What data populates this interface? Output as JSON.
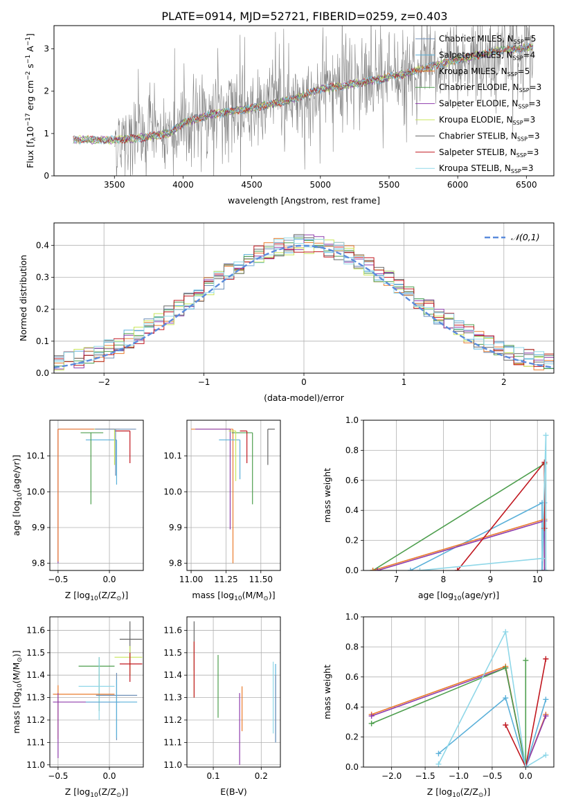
{
  "figure_title": "PLATE=0914, MJD=52721, FIBERID=0259, z=0.403",
  "model_colors": [
    "#6d8fb7",
    "#5ab0d9",
    "#ea7b2c",
    "#4d9e4d",
    "#8e3bab",
    "#c8e65a",
    "#666666",
    "#c0161e",
    "#8fd7e8"
  ],
  "chart_data": [
    {
      "id": "spectrum",
      "type": "line",
      "title": "PLATE=0914, MJD=52721, FIBERID=0259, z=0.403",
      "xlabel": "wavelength [Angstrom, rest frame]",
      "ylabel_parts": [
        "Flux [f",
        "λ",
        "10",
        "−17",
        " erg cm",
        "−2",
        " s",
        "−1",
        " A",
        "−1",
        "]"
      ],
      "xlim": [
        3060,
        6700
      ],
      "ylim": [
        0,
        3.55
      ],
      "xticks": [
        3500,
        4000,
        4500,
        5000,
        5500,
        6000,
        6500
      ],
      "yticks": [
        0,
        1,
        2,
        3
      ],
      "grid": false,
      "legend_loc": "upper-right",
      "legend": [
        {
          "label": "Chabrier MILES, N",
          "sub": "SSP",
          "suffix": "=5"
        },
        {
          "label": "Salpeter MILES, N",
          "sub": "SSP",
          "suffix": "=4"
        },
        {
          "label": "Kroupa MILES, N",
          "sub": "SSP",
          "suffix": "=5"
        },
        {
          "label": "Chabrier ELODIE, N",
          "sub": "SSP",
          "suffix": "=3"
        },
        {
          "label": "Salpeter ELODIE, N",
          "sub": "SSP",
          "suffix": "=3"
        },
        {
          "label": "Kroupa ELODIE, N",
          "sub": "SSP",
          "suffix": "=3"
        },
        {
          "label": "Chabrier STELIB, N",
          "sub": "SSP",
          "suffix": "=3"
        },
        {
          "label": "Salpeter STELIB, N",
          "sub": "SSP",
          "suffix": "=3"
        },
        {
          "label": "Kroupa STELIB, N",
          "sub": "SSP",
          "suffix": "=3"
        }
      ],
      "model_continuum": {
        "x": [
          3200,
          3500,
          3700,
          3800,
          3900,
          4000,
          4200,
          4500,
          4800,
          5000,
          5300,
          5600,
          6000,
          6300,
          6550
        ],
        "y": [
          0.85,
          0.85,
          0.9,
          0.95,
          1.0,
          1.25,
          1.45,
          1.6,
          1.8,
          2.05,
          2.2,
          2.4,
          2.75,
          2.95,
          3.05
        ]
      },
      "data_range": [
        3500,
        6550
      ]
    },
    {
      "id": "residuals",
      "type": "histogram",
      "xlabel": "(data-model)/error",
      "ylabel": "Normed distribution",
      "xlim": [
        -2.5,
        2.5
      ],
      "ylim": [
        0,
        0.47
      ],
      "xticks": [
        -2,
        -1,
        0,
        1,
        2
      ],
      "yticks": [
        0.0,
        0.1,
        0.2,
        0.3,
        0.4
      ],
      "grid": true,
      "bin_width": 0.1,
      "legend_loc": "upper-right",
      "normal_curve_label": "𝒩(0,1)",
      "normal_curve_color": "#5b8bdc"
    },
    {
      "id": "age-vs-Z",
      "type": "errorbar",
      "xlabel_parts": [
        "Z [log",
        "10",
        "(Z/Z",
        "⊙",
        ")]"
      ],
      "ylabel_parts": [
        "age  [log",
        "10",
        "(age/yr)]"
      ],
      "xlim": [
        -0.58,
        0.33
      ],
      "ylim": [
        9.78,
        10.2
      ],
      "xticks": [
        -0.5,
        0.0
      ],
      "yticks": [
        9.8,
        9.9,
        10.0,
        10.1
      ],
      "grid": true,
      "points": [
        {
          "x": -0.5,
          "xerr": [
            0.0,
            0.55
          ],
          "y": 10.175,
          "yerr": [
            0.375,
            0.0
          ],
          "model": 5
        },
        {
          "x": 0.07,
          "xerr": [
            0.3,
            0.0
          ],
          "y": 10.145,
          "yerr": [
            0.125,
            0.0
          ],
          "model": 2
        },
        {
          "x": -0.18,
          "xerr": [
            0.1,
            0.12
          ],
          "y": 10.165,
          "yerr": [
            0.2,
            0.0
          ],
          "model": 4
        },
        {
          "x": 0.2,
          "xerr": [
            0.15,
            0.0
          ],
          "y": 10.17,
          "yerr": [
            0.09,
            0.0
          ],
          "model": 8
        },
        {
          "x": -0.5,
          "xerr": [
            0.0,
            0.6
          ],
          "y": 10.175,
          "yerr": [
            0.37,
            0.0
          ],
          "model": 3
        },
        {
          "x": 0.05,
          "xerr": [
            0.2,
            0.0
          ],
          "y": 10.175,
          "yerr": [
            0.1,
            0.0
          ],
          "model": 6
        },
        {
          "x": 0.06,
          "xerr": [
            0.2,
            0.2
          ],
          "y": 10.175,
          "yerr": [
            0.13,
            0.0
          ],
          "model": 1
        }
      ]
    },
    {
      "id": "age-vs-mass",
      "type": "errorbar",
      "xlabel_parts": [
        "mass [log",
        "10",
        "(M/M",
        "⊙",
        ")]"
      ],
      "xlim": [
        10.97,
        11.64
      ],
      "ylim": [
        9.78,
        10.2
      ],
      "xticks": [
        11.0,
        11.25,
        11.5
      ],
      "xtick_labels": [
        "11.00",
        "11.25",
        "11.50"
      ],
      "yticks": [
        9.8,
        9.9,
        10.0,
        10.1
      ],
      "grid": true,
      "points": [
        {
          "x": 11.3,
          "xerr": [
            0.3,
            0.0
          ],
          "y": 10.175,
          "yerr": [
            0.375,
            0.0
          ],
          "model": 3
        },
        {
          "x": 11.28,
          "xerr": [
            0.25,
            0.0
          ],
          "y": 10.175,
          "yerr": [
            0.28,
            0.0
          ],
          "model": 5
        },
        {
          "x": 11.44,
          "xerr": [
            0.15,
            0.0
          ],
          "y": 10.165,
          "yerr": [
            0.2,
            0.0
          ],
          "model": 4
        },
        {
          "x": 11.55,
          "xerr": [
            0.0,
            0.05
          ],
          "y": 10.175,
          "yerr": [
            0.1,
            0.0
          ],
          "model": 7
        },
        {
          "x": 11.35,
          "xerr": [
            0.15,
            0.0
          ],
          "y": 10.145,
          "yerr": [
            0.11,
            0.0
          ],
          "model": 2
        },
        {
          "x": 11.4,
          "xerr": [
            0.05,
            0.0
          ],
          "y": 10.17,
          "yerr": [
            0.09,
            0.0
          ],
          "model": 8
        },
        {
          "x": 11.32,
          "xerr": [
            0.05,
            0.0
          ],
          "y": 10.17,
          "yerr": [
            0.14,
            0.0
          ],
          "model": 6
        }
      ]
    },
    {
      "id": "weight-vs-age",
      "type": "line",
      "xlabel_parts": [
        "age  [log",
        "10",
        "(age/yr)]"
      ],
      "ylabel": "mass weight",
      "xlim": [
        6.3,
        10.35
      ],
      "ylim": [
        0,
        1.0
      ],
      "xticks": [
        7,
        8,
        9,
        10
      ],
      "yticks": [
        0.0,
        0.2,
        0.4,
        0.6,
        0.8,
        1.0
      ],
      "grid": true,
      "series": [
        {
          "model": 4,
          "x": [
            6.5,
            10.15,
            10.15
          ],
          "y": [
            0.0,
            0.71,
            0.0
          ]
        },
        {
          "model": 2,
          "x": [
            7.3,
            10.1,
            10.1,
            10.15
          ],
          "y": [
            0.0,
            0.45,
            0.0,
            0.45
          ]
        },
        {
          "model": 3,
          "x": [
            6.5,
            10.15,
            10.15
          ],
          "y": [
            0.0,
            0.34,
            0.0
          ]
        },
        {
          "model": 5,
          "x": [
            6.6,
            10.15,
            10.15
          ],
          "y": [
            0.0,
            0.33,
            0.0
          ]
        },
        {
          "model": 8,
          "x": [
            8.3,
            10.15,
            10.15
          ],
          "y": [
            0.0,
            0.72,
            0.28
          ]
        },
        {
          "model": 9,
          "x": [
            7.5,
            10.1,
            10.18,
            10.18
          ],
          "y": [
            0.0,
            0.08,
            0.9,
            0.0
          ]
        }
      ]
    },
    {
      "id": "mass-vs-Z",
      "type": "errorbar",
      "xlabel_parts": [
        "Z [log",
        "10",
        "(Z/Z",
        "⊙",
        ")]"
      ],
      "ylabel_parts": [
        "mass [log",
        "10",
        "(M/M",
        "⊙",
        ")]"
      ],
      "xlim": [
        -0.58,
        0.33
      ],
      "ylim": [
        10.99,
        11.66
      ],
      "xticks": [
        -0.5,
        0.0
      ],
      "yticks": [
        11.0,
        11.1,
        11.2,
        11.3,
        11.4,
        11.5,
        11.6
      ],
      "grid": true,
      "points": [
        {
          "x": 0.2,
          "xerr": [
            0.1,
            0.12
          ],
          "y": 11.56,
          "yerr": [
            0.1,
            0.08
          ],
          "model": 7
        },
        {
          "x": 0.2,
          "xerr": [
            0.15,
            0.12
          ],
          "y": 11.48,
          "yerr": [
            0.08,
            0.05
          ],
          "model": 6
        },
        {
          "x": 0.2,
          "xerr": [
            0.1,
            0.12
          ],
          "y": 11.45,
          "yerr": [
            0.08,
            0.05
          ],
          "model": 8
        },
        {
          "x": -0.1,
          "xerr": [
            0.2,
            0.15
          ],
          "y": 11.44,
          "yerr": [
            0.2,
            0.04
          ],
          "model": 4
        },
        {
          "x": -0.1,
          "xerr": [
            0.2,
            0.15
          ],
          "y": 11.35,
          "yerr": [
            0.15,
            0.13
          ],
          "model": 9
        },
        {
          "x": -0.5,
          "xerr": [
            0.05,
            0.55
          ],
          "y": 11.315,
          "yerr": [
            0.2,
            0.04
          ],
          "model": 3
        },
        {
          "x": 0.07,
          "xerr": [
            0.2,
            0.2
          ],
          "y": 11.31,
          "yerr": [
            0.2,
            0.1
          ],
          "model": 1
        },
        {
          "x": -0.5,
          "xerr": [
            0.05,
            0.6
          ],
          "y": 11.28,
          "yerr": [
            0.25,
            0.04
          ],
          "model": 5
        },
        {
          "x": 0.07,
          "xerr": [
            0.3,
            0.2
          ],
          "y": 11.28,
          "yerr": [
            0.16,
            0.1
          ],
          "model": 2
        }
      ]
    },
    {
      "id": "mass-vs-EBV",
      "type": "errorbar",
      "xlabel": "E(B-V)",
      "xlim": [
        0.045,
        0.24
      ],
      "ylim": [
        10.99,
        11.66
      ],
      "xticks": [
        0.1,
        0.2
      ],
      "yticks": [
        11.0,
        11.1,
        11.2,
        11.3,
        11.4,
        11.5,
        11.6
      ],
      "grid": true,
      "points": [
        {
          "x": 0.06,
          "y": 11.56,
          "yerr": [
            0.14,
            0.08
          ],
          "model": 7
        },
        {
          "x": 0.06,
          "y": 11.5,
          "yerr": [
            0.2,
            0.05
          ],
          "model": 6
        },
        {
          "x": 0.06,
          "y": 11.45,
          "yerr": [
            0.15,
            0.1
          ],
          "model": 8
        },
        {
          "x": 0.11,
          "y": 11.35,
          "yerr": [
            0.14,
            0.14
          ],
          "model": 4
        },
        {
          "x": 0.16,
          "y": 11.25,
          "yerr": [
            0.1,
            0.1
          ],
          "model": 3
        },
        {
          "x": 0.155,
          "y": 11.17,
          "yerr": [
            0.17,
            0.15
          ],
          "model": 5
        },
        {
          "x": 0.23,
          "y": 11.3,
          "yerr": [
            0.2,
            0.15
          ],
          "model": 2
        },
        {
          "x": 0.23,
          "y": 11.3,
          "yerr": [
            0.2,
            0.1
          ],
          "model": 1
        },
        {
          "x": 0.225,
          "y": 11.3,
          "yerr": [
            0.16,
            0.16
          ],
          "model": 9
        }
      ]
    },
    {
      "id": "weight-vs-Z",
      "type": "line",
      "xlabel_parts": [
        "Z [log",
        "10",
        "(Z/Z",
        "⊙",
        ")]"
      ],
      "ylabel": "mass weight",
      "xlim": [
        -2.42,
        0.42
      ],
      "ylim": [
        0,
        1.0
      ],
      "xticks": [
        -2.0,
        -1.5,
        -1.0,
        -0.5,
        0.0
      ],
      "xtick_labels": [
        "−2.0",
        "−1.5",
        "−1.0",
        "−0.5",
        "0.0"
      ],
      "yticks": [
        0.0,
        0.2,
        0.4,
        0.6,
        0.8,
        1.0
      ],
      "grid": true,
      "series": [
        {
          "model": 3,
          "x": [
            -2.3,
            -0.3,
            0.0,
            0.3
          ],
          "y": [
            0.35,
            0.67,
            0.0,
            0.35
          ]
        },
        {
          "model": 5,
          "x": [
            -2.3,
            -0.3,
            0.0,
            0.3
          ],
          "y": [
            0.34,
            0.66,
            0.0,
            0.34
          ]
        },
        {
          "model": 4,
          "x": [
            -2.3,
            -0.3,
            0.0,
            0.0
          ],
          "y": [
            0.29,
            0.66,
            0.0,
            0.71
          ]
        },
        {
          "model": 2,
          "x": [
            -1.3,
            -0.3,
            0.0,
            0.3
          ],
          "y": [
            0.09,
            0.46,
            0.0,
            0.45
          ]
        },
        {
          "model": 8,
          "x": [
            -0.3,
            0.0,
            0.3
          ],
          "y": [
            0.28,
            0.0,
            0.72
          ]
        },
        {
          "model": 9,
          "x": [
            -1.3,
            -0.3,
            0.0,
            0.3
          ],
          "y": [
            0.02,
            0.9,
            0.0,
            0.08
          ]
        }
      ]
    }
  ]
}
